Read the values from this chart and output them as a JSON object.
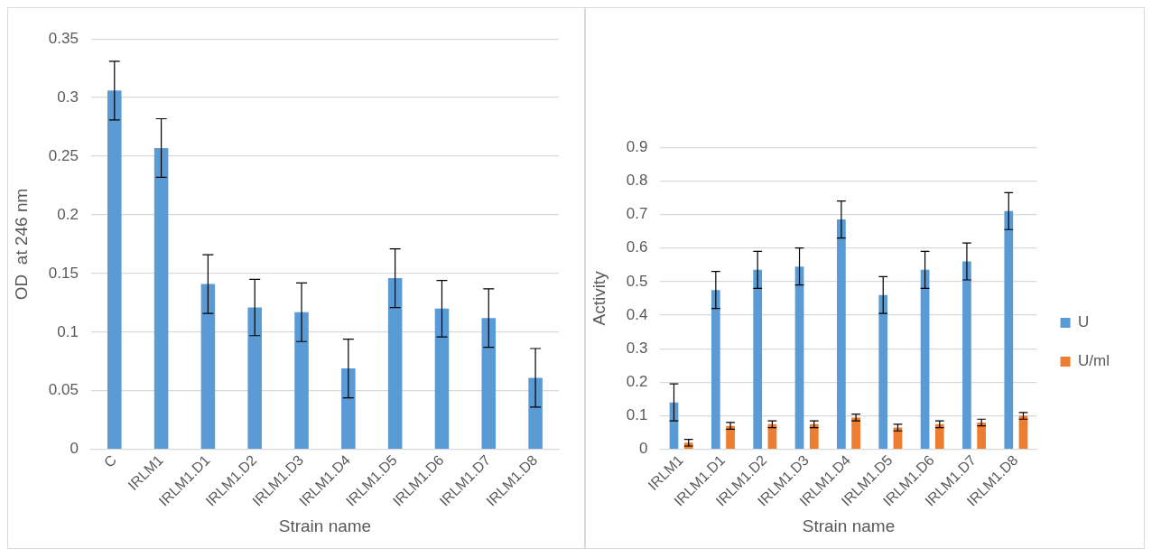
{
  "chart_data": [
    {
      "type": "bar",
      "xlabel": "Strain name",
      "ylabel": "OD  at 246 nm",
      "categories": [
        "C",
        "IRLM1",
        "IRLM1.D1",
        "IRLM1.D2",
        "IRLM1.D3",
        "IRLM1.D4",
        "IRLM1.D5",
        "IRLM1.D6",
        "IRLM1.D7",
        "IRLM1.D8"
      ],
      "series": [
        {
          "color": "#5b9bd5",
          "values": [
            0.306,
            0.257,
            0.141,
            0.121,
            0.117,
            0.069,
            0.146,
            0.12,
            0.112,
            0.061
          ],
          "errors": [
            0.025,
            0.025,
            0.025,
            0.024,
            0.025,
            0.025,
            0.025,
            0.024,
            0.025,
            0.025
          ]
        }
      ],
      "ylim": [
        0,
        0.35
      ],
      "yticks": [
        0,
        {
          "value": 0.05,
          "label": "0.05"
        },
        {
          "value": 0.1,
          "label": "0.1"
        },
        {
          "value": 0.15,
          "label": "0.15"
        },
        {
          "value": 0.2,
          "label": "0.2"
        },
        {
          "value": 0.25,
          "label": "0.25"
        },
        {
          "value": 0.3,
          "label": "0.3"
        },
        {
          "value": 0.35,
          "label": "0.35"
        }
      ],
      "grid": "y",
      "legend": false
    },
    {
      "type": "bar",
      "xlabel": "Strain name",
      "ylabel": "Activity",
      "categories": [
        "IRLM1",
        "IRLM1.D1",
        "IRLM1.D2",
        "IRLM1.D3",
        "IRLM1.D4",
        "IRLM1.D5",
        "IRLM1.D6",
        "IRLM1.D7",
        "IRLM1.D8"
      ],
      "series": [
        {
          "name": "U",
          "color": "#5b9bd5",
          "values": [
            0.14,
            0.475,
            0.535,
            0.545,
            0.685,
            0.46,
            0.535,
            0.56,
            0.71
          ],
          "errors": [
            0.055,
            0.055,
            0.055,
            0.055,
            0.055,
            0.055,
            0.055,
            0.055,
            0.055
          ]
        },
        {
          "name": "U/ml",
          "color": "#ed7d31",
          "values": [
            0.02,
            0.07,
            0.075,
            0.075,
            0.095,
            0.065,
            0.075,
            0.08,
            0.1
          ],
          "errors": [
            0.01,
            0.01,
            0.01,
            0.01,
            0.01,
            0.01,
            0.01,
            0.01,
            0.01
          ]
        }
      ],
      "ylim": [
        0,
        0.9
      ],
      "yticks": [
        0,
        {
          "value": 0.1,
          "label": "0.1"
        },
        {
          "value": 0.2,
          "label": "0.2"
        },
        {
          "value": 0.3,
          "label": "0.3"
        },
        {
          "value": 0.4,
          "label": "0.4"
        },
        {
          "value": 0.5,
          "label": "0.5"
        },
        {
          "value": 0.6,
          "label": "0.6"
        },
        {
          "value": 0.7,
          "label": "0.7"
        },
        {
          "value": 0.8,
          "label": "0.8"
        },
        {
          "value": 0.9,
          "label": "0.9"
        }
      ],
      "grid": "y",
      "legend": "right"
    }
  ]
}
